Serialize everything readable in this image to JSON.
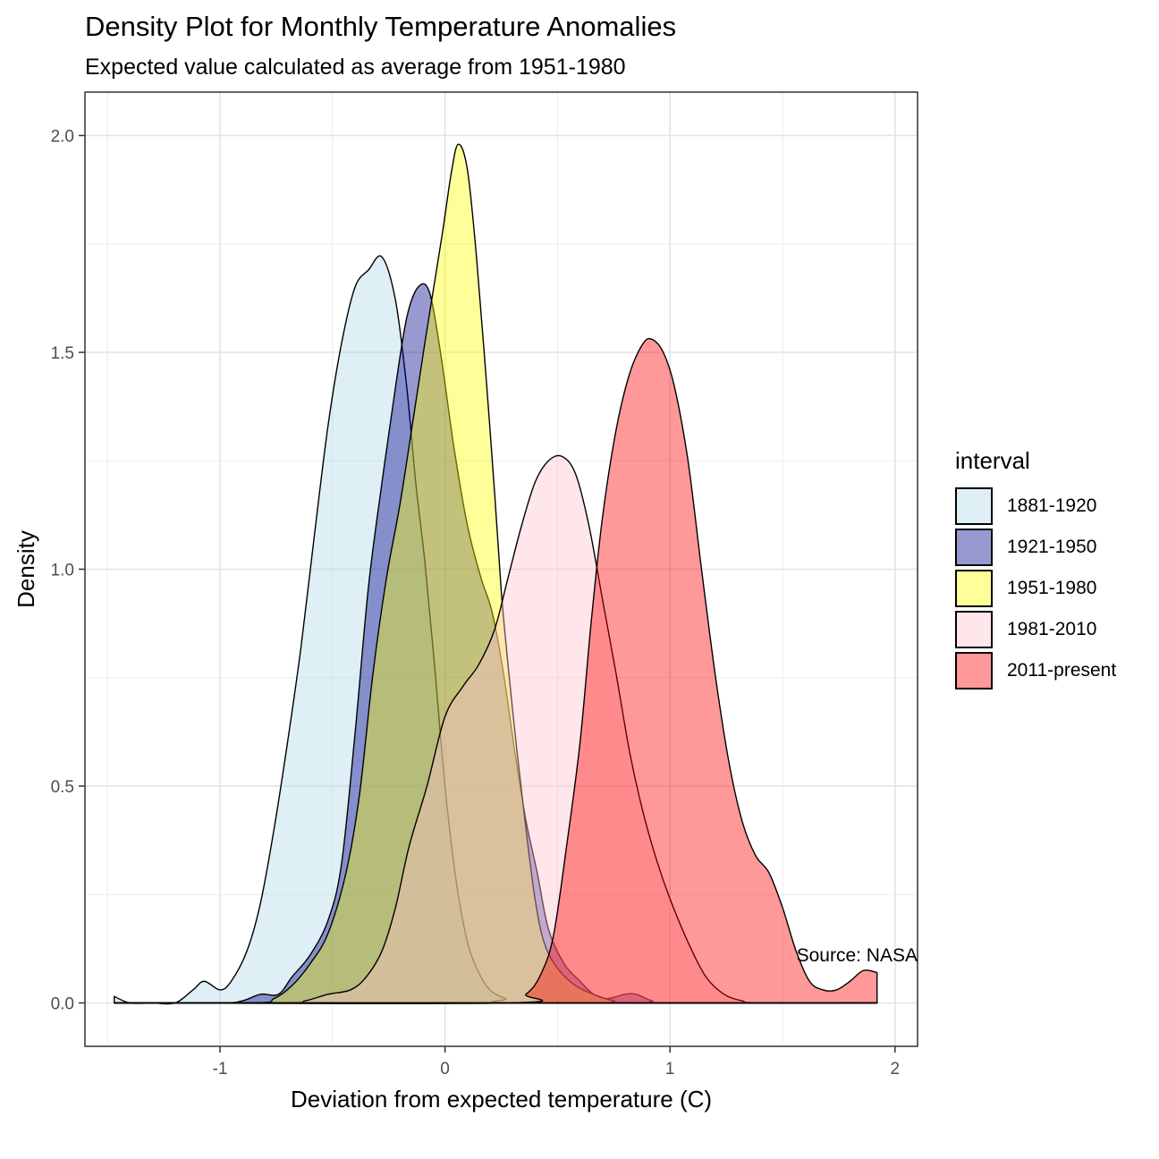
{
  "chart_data": {
    "type": "area",
    "subtype": "density",
    "title": "Density Plot for Monthly Temperature Anomalies",
    "subtitle": "Expected value calculated as average from 1951-1980",
    "xlabel": "Deviation from expected temperature (C)",
    "ylabel": "Density",
    "caption": "Source: NASA",
    "xlim": [
      -1.6,
      2.1
    ],
    "ylim": [
      -0.1,
      2.1
    ],
    "x_ticks": [
      -1,
      0,
      1,
      2
    ],
    "x_tick_labels": [
      "-1",
      "0",
      "1",
      "2"
    ],
    "y_ticks": [
      0.0,
      0.5,
      1.0,
      1.5,
      2.0
    ],
    "y_tick_labels": [
      "0.0",
      "0.5",
      "1.0",
      "1.5",
      "2.0"
    ],
    "grid": true,
    "legend": {
      "title": "interval",
      "position": "right"
    },
    "series": [
      {
        "name": "1881-1920",
        "fill": "#add8e6",
        "points": [
          [
            -1.47,
            0.015
          ],
          [
            -1.4,
            0.0
          ],
          [
            -1.3,
            0.0
          ],
          [
            -1.2,
            0.0
          ],
          [
            -1.12,
            0.03
          ],
          [
            -1.07,
            0.05
          ],
          [
            -1.0,
            0.03
          ],
          [
            -0.95,
            0.05
          ],
          [
            -0.88,
            0.12
          ],
          [
            -0.82,
            0.23
          ],
          [
            -0.76,
            0.4
          ],
          [
            -0.7,
            0.6
          ],
          [
            -0.64,
            0.82
          ],
          [
            -0.58,
            1.08
          ],
          [
            -0.52,
            1.33
          ],
          [
            -0.46,
            1.52
          ],
          [
            -0.4,
            1.65
          ],
          [
            -0.34,
            1.69
          ],
          [
            -0.28,
            1.72
          ],
          [
            -0.22,
            1.62
          ],
          [
            -0.17,
            1.42
          ],
          [
            -0.13,
            1.2
          ],
          [
            -0.09,
            1.02
          ],
          [
            -0.05,
            0.8
          ],
          [
            0.0,
            0.5
          ],
          [
            0.05,
            0.28
          ],
          [
            0.1,
            0.14
          ],
          [
            0.15,
            0.07
          ],
          [
            0.2,
            0.03
          ],
          [
            0.27,
            0.01
          ],
          [
            0.35,
            0.0
          ],
          [
            1.92,
            0.0
          ]
        ]
      },
      {
        "name": "1921-1950",
        "fill": "#00008b",
        "points": [
          [
            -1.47,
            0.0
          ],
          [
            -1.0,
            0.0
          ],
          [
            -0.9,
            0.005
          ],
          [
            -0.82,
            0.02
          ],
          [
            -0.74,
            0.02
          ],
          [
            -0.68,
            0.06
          ],
          [
            -0.6,
            0.11
          ],
          [
            -0.52,
            0.19
          ],
          [
            -0.46,
            0.32
          ],
          [
            -0.4,
            0.62
          ],
          [
            -0.34,
            0.96
          ],
          [
            -0.28,
            1.2
          ],
          [
            -0.22,
            1.42
          ],
          [
            -0.17,
            1.58
          ],
          [
            -0.12,
            1.65
          ],
          [
            -0.07,
            1.64
          ],
          [
            -0.02,
            1.5
          ],
          [
            0.04,
            1.28
          ],
          [
            0.1,
            1.1
          ],
          [
            0.16,
            0.98
          ],
          [
            0.21,
            0.9
          ],
          [
            0.26,
            0.76
          ],
          [
            0.31,
            0.58
          ],
          [
            0.36,
            0.42
          ],
          [
            0.41,
            0.3
          ],
          [
            0.46,
            0.17
          ],
          [
            0.53,
            0.09
          ],
          [
            0.6,
            0.05
          ],
          [
            0.66,
            0.02
          ],
          [
            0.72,
            0.01
          ],
          [
            0.8,
            0.02
          ],
          [
            0.85,
            0.02
          ],
          [
            0.92,
            0.005
          ],
          [
            1.0,
            0.0
          ],
          [
            1.92,
            0.0
          ]
        ]
      },
      {
        "name": "1951-1980",
        "fill": "#ffff00",
        "points": [
          [
            -1.47,
            0.0
          ],
          [
            -0.85,
            0.0
          ],
          [
            -0.76,
            0.01
          ],
          [
            -0.68,
            0.04
          ],
          [
            -0.6,
            0.09
          ],
          [
            -0.52,
            0.16
          ],
          [
            -0.44,
            0.3
          ],
          [
            -0.38,
            0.48
          ],
          [
            -0.32,
            0.76
          ],
          [
            -0.26,
            0.98
          ],
          [
            -0.2,
            1.15
          ],
          [
            -0.14,
            1.35
          ],
          [
            -0.09,
            1.52
          ],
          [
            -0.05,
            1.65
          ],
          [
            -0.01,
            1.78
          ],
          [
            0.03,
            1.92
          ],
          [
            0.06,
            1.98
          ],
          [
            0.1,
            1.92
          ],
          [
            0.14,
            1.72
          ],
          [
            0.18,
            1.46
          ],
          [
            0.22,
            1.18
          ],
          [
            0.25,
            0.95
          ],
          [
            0.28,
            0.78
          ],
          [
            0.32,
            0.58
          ],
          [
            0.36,
            0.4
          ],
          [
            0.4,
            0.24
          ],
          [
            0.44,
            0.14
          ],
          [
            0.5,
            0.08
          ],
          [
            0.58,
            0.04
          ],
          [
            0.66,
            0.02
          ],
          [
            0.75,
            0.005
          ],
          [
            0.85,
            0.0
          ],
          [
            1.92,
            0.0
          ]
        ]
      },
      {
        "name": "1981-2010",
        "fill": "#ffc0cb",
        "points": [
          [
            -1.47,
            0.0
          ],
          [
            -0.72,
            0.0
          ],
          [
            -0.62,
            0.005
          ],
          [
            -0.52,
            0.02
          ],
          [
            -0.42,
            0.03
          ],
          [
            -0.35,
            0.06
          ],
          [
            -0.28,
            0.12
          ],
          [
            -0.22,
            0.22
          ],
          [
            -0.16,
            0.36
          ],
          [
            -0.08,
            0.5
          ],
          [
            0.0,
            0.66
          ],
          [
            0.08,
            0.73
          ],
          [
            0.15,
            0.78
          ],
          [
            0.22,
            0.86
          ],
          [
            0.28,
            0.98
          ],
          [
            0.34,
            1.1
          ],
          [
            0.4,
            1.2
          ],
          [
            0.46,
            1.25
          ],
          [
            0.52,
            1.26
          ],
          [
            0.58,
            1.22
          ],
          [
            0.64,
            1.1
          ],
          [
            0.7,
            0.93
          ],
          [
            0.76,
            0.76
          ],
          [
            0.82,
            0.58
          ],
          [
            0.88,
            0.44
          ],
          [
            0.94,
            0.33
          ],
          [
            1.0,
            0.24
          ],
          [
            1.08,
            0.14
          ],
          [
            1.16,
            0.06
          ],
          [
            1.24,
            0.02
          ],
          [
            1.32,
            0.005
          ],
          [
            1.4,
            0.0
          ],
          [
            1.92,
            0.0
          ]
        ]
      },
      {
        "name": "2011-present",
        "fill": "#ff0000",
        "points": [
          [
            -1.47,
            0.0
          ],
          [
            0.28,
            0.0
          ],
          [
            0.36,
            0.02
          ],
          [
            0.42,
            0.06
          ],
          [
            0.48,
            0.15
          ],
          [
            0.54,
            0.36
          ],
          [
            0.6,
            0.6
          ],
          [
            0.65,
            0.88
          ],
          [
            0.7,
            1.12
          ],
          [
            0.76,
            1.32
          ],
          [
            0.82,
            1.45
          ],
          [
            0.88,
            1.52
          ],
          [
            0.92,
            1.53
          ],
          [
            0.97,
            1.5
          ],
          [
            1.02,
            1.42
          ],
          [
            1.08,
            1.25
          ],
          [
            1.14,
            1.0
          ],
          [
            1.2,
            0.76
          ],
          [
            1.26,
            0.56
          ],
          [
            1.32,
            0.42
          ],
          [
            1.38,
            0.34
          ],
          [
            1.44,
            0.3
          ],
          [
            1.5,
            0.22
          ],
          [
            1.56,
            0.12
          ],
          [
            1.62,
            0.05
          ],
          [
            1.68,
            0.03
          ],
          [
            1.74,
            0.03
          ],
          [
            1.8,
            0.05
          ],
          [
            1.86,
            0.075
          ],
          [
            1.92,
            0.07
          ]
        ]
      }
    ]
  }
}
